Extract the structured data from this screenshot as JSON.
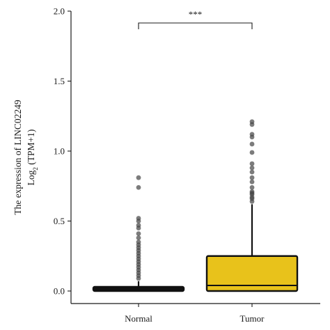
{
  "chart_data": {
    "type": "box",
    "ylabel_line1": "The expression of LINC02249",
    "ylabel_line2_prefix": "Log",
    "ylabel_line2_sub": "2",
    "ylabel_line2_suffix": " (TPM+1)",
    "ylim": [
      0,
      2.0
    ],
    "yticks": [
      "0.0",
      "0.5",
      "1.0",
      "1.5",
      "2.0"
    ],
    "ytick_values": [
      0,
      0.5,
      1.0,
      1.5,
      2.0
    ],
    "significance": "***",
    "categories": [
      "Normal",
      "Tumor"
    ],
    "colors": {
      "Normal": "#111111",
      "Tumor": "#E8C21B",
      "outline": "#111111",
      "outlier": "#444444"
    },
    "series": [
      {
        "category": "Normal",
        "min": 0.0,
        "q1": 0.0,
        "median": 0.01,
        "q3": 0.025,
        "max": 0.07,
        "outliers": [
          0.81,
          0.74,
          0.52,
          0.5,
          0.47,
          0.45,
          0.41,
          0.38,
          0.35,
          0.33,
          0.31,
          0.29,
          0.27,
          0.25,
          0.23,
          0.21,
          0.19,
          0.17,
          0.15,
          0.13,
          0.11,
          0.09
        ]
      },
      {
        "category": "Tumor",
        "min": 0.0,
        "q1": 0.0,
        "median": 0.04,
        "q3": 0.25,
        "max": 0.62,
        "outliers": [
          1.21,
          1.19,
          1.12,
          1.1,
          1.05,
          0.99,
          0.91,
          0.88,
          0.85,
          0.81,
          0.78,
          0.74,
          0.71,
          0.7,
          0.69,
          0.67,
          0.66,
          0.64
        ]
      }
    ]
  }
}
